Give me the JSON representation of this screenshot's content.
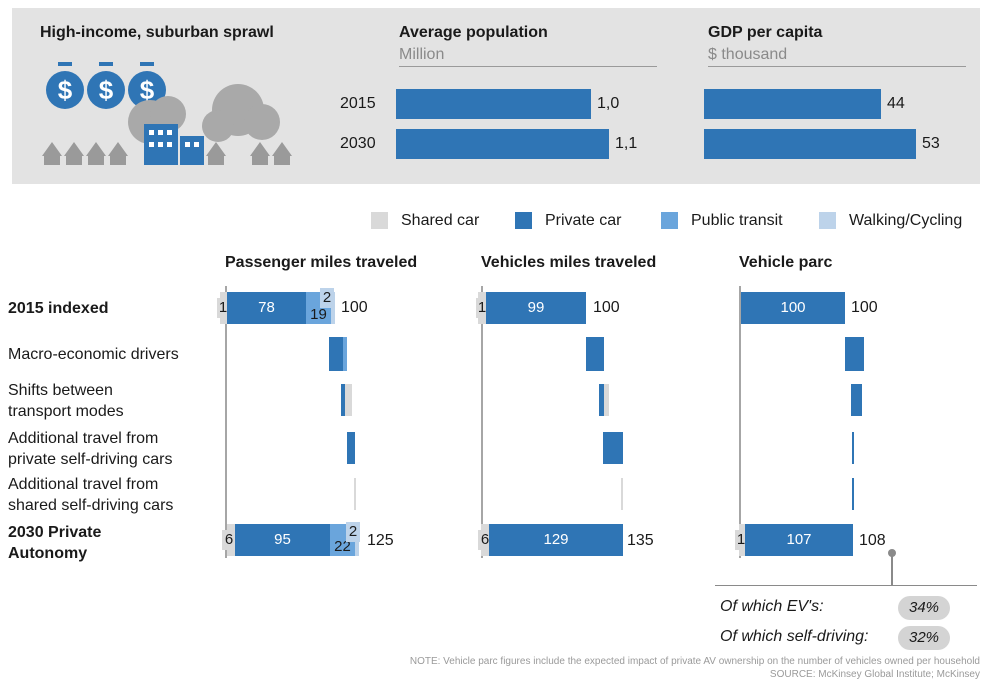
{
  "panel": {
    "title": "High-income, suburban sprawl",
    "population_title": "Average population",
    "population_unit": "Million",
    "gdp_title": "GDP per capita",
    "gdp_unit": "$ thousand",
    "years": [
      "2015",
      "2030"
    ],
    "population_values": [
      "1,0",
      "1,1"
    ],
    "gdp_values": [
      "44",
      "53"
    ]
  },
  "legend": {
    "shared_car": "Shared car",
    "private_car": "Private car",
    "public_transit": "Public transit",
    "walking_cycling": "Walking/Cycling"
  },
  "colors": {
    "shared_car": "#d9d9d9",
    "private_car": "#2f75b5",
    "public_transit": "#6aa5dc",
    "walking_cycling": "#bdd3ea",
    "panel_bg": "#e3e3e3"
  },
  "row_labels": {
    "r2015": "2015 indexed",
    "macro": "Macro-economic drivers",
    "shifts_1": "Shifts between",
    "shifts_2": "transport modes",
    "private_sd_1": "Additional travel from",
    "private_sd_2": "private self-driving cars",
    "shared_sd_1": "Additional travel from",
    "shared_sd_2": "shared self-driving cars",
    "r2030_1": "2030 Private",
    "r2030_2": "Autonomy"
  },
  "charts": {
    "pmt": {
      "title": "Passenger miles traveled",
      "l2015": {
        "shared": "1",
        "private": "78",
        "transit": "19",
        "walk": "2",
        "total": "100"
      },
      "l2030": {
        "shared": "6",
        "private": "95",
        "transit": "22",
        "walk": "2",
        "total": "125"
      }
    },
    "vmt": {
      "title": "Vehicles miles traveled",
      "l2015": {
        "shared": "1",
        "private": "99",
        "total": "100"
      },
      "l2030": {
        "shared": "6",
        "private": "129",
        "total": "135"
      }
    },
    "parc": {
      "title": "Vehicle parc",
      "l2015": {
        "private": "100",
        "total": "100"
      },
      "l2030": {
        "shared": "1",
        "private": "107",
        "total": "108"
      }
    }
  },
  "parc_notes": {
    "ev_label": "Of which EV's:",
    "ev_value": "34%",
    "sd_label": "Of which self-driving:",
    "sd_value": "32%"
  },
  "footer": {
    "note": "NOTE: Vehicle parc figures include the expected impact of private AV ownership on the number of vehicles owned per household",
    "source": "SOURCE: McKinsey Global Institute; McKinsey"
  },
  "chart_data": [
    {
      "type": "bar",
      "title": "Average population",
      "ylabel": "Million",
      "categories": [
        "2015",
        "2030"
      ],
      "values": [
        1.0,
        1.1
      ]
    },
    {
      "type": "bar",
      "title": "GDP per capita",
      "ylabel": "$ thousand",
      "categories": [
        "2015",
        "2030"
      ],
      "values": [
        44,
        53
      ]
    },
    {
      "type": "bar",
      "title": "Passenger miles traveled",
      "categories": [
        "2015 indexed",
        "2030 Private Autonomy"
      ],
      "series": [
        {
          "name": "Shared car",
          "values": [
            1,
            6
          ]
        },
        {
          "name": "Private car",
          "values": [
            78,
            95
          ]
        },
        {
          "name": "Public transit",
          "values": [
            19,
            22
          ]
        },
        {
          "name": "Walking/Cycling",
          "values": [
            2,
            2
          ]
        }
      ],
      "totals": [
        100,
        125
      ]
    },
    {
      "type": "bar",
      "title": "Vehicles miles traveled",
      "categories": [
        "2015 indexed",
        "2030 Private Autonomy"
      ],
      "series": [
        {
          "name": "Shared car",
          "values": [
            1,
            6
          ]
        },
        {
          "name": "Private car",
          "values": [
            99,
            129
          ]
        }
      ],
      "totals": [
        100,
        135
      ]
    },
    {
      "type": "bar",
      "title": "Vehicle parc",
      "categories": [
        "2015 indexed",
        "2030 Private Autonomy"
      ],
      "series": [
        {
          "name": "Shared car",
          "values": [
            0,
            1
          ]
        },
        {
          "name": "Private car",
          "values": [
            100,
            107
          ]
        }
      ],
      "totals": [
        100,
        108
      ],
      "annotations": {
        "Of which EV's:": "34%",
        "Of which self-driving:": "32%"
      }
    }
  ]
}
